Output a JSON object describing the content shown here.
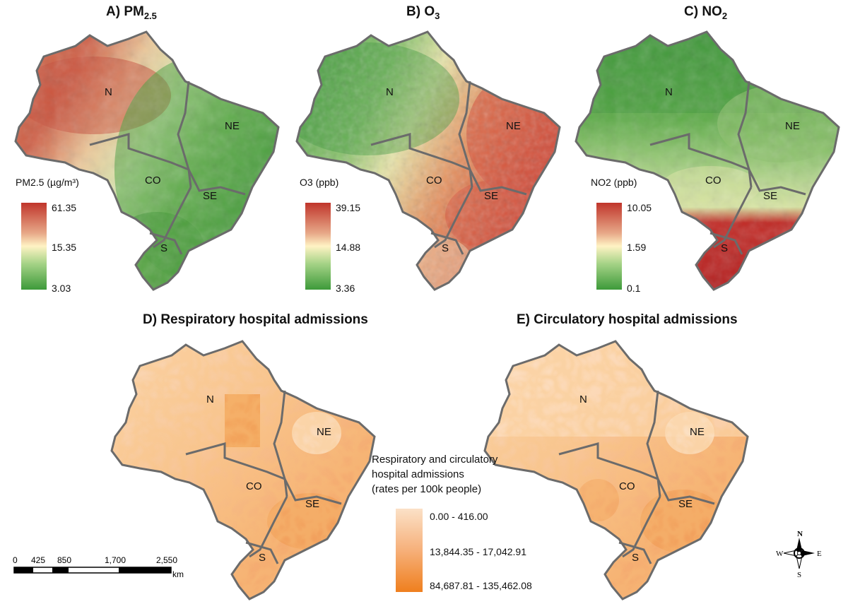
{
  "panels": [
    {
      "id": "A",
      "title_prefix": "A) PM",
      "title_sub": "2.5",
      "legend_title": "PM2.5 (µg/m³)",
      "legend": {
        "max": "61.35",
        "mid": "15.35",
        "min": "3.03"
      }
    },
    {
      "id": "B",
      "title_prefix": "B) O",
      "title_sub": "3",
      "legend_title": "O3 (ppb)",
      "legend": {
        "max": "39.15",
        "mid": "14.88",
        "min": "3.36"
      }
    },
    {
      "id": "C",
      "title_prefix": "C) NO",
      "title_sub": "2",
      "legend_title": "NO2 (ppb)",
      "legend": {
        "max": "10.05",
        "mid": "1.59",
        "min": "0.1"
      }
    },
    {
      "id": "D",
      "title": "D) Respiratory hospital admissions"
    },
    {
      "id": "E",
      "title": "E) Circulatory hospital admissions"
    }
  ],
  "regions": [
    "N",
    "NE",
    "CO",
    "SE",
    "S"
  ],
  "admissions_legend": {
    "title_lines": [
      "Respiratory and circulatory",
      "hospital admissions",
      "(rates per 100k people)"
    ],
    "classes": [
      "0.00 - 416.00",
      "13,844.35 - 17,042.91",
      "84,687.81 - 135,462.08"
    ]
  },
  "scale_bar": {
    "ticks": [
      "0",
      "425",
      "850",
      "1,700",
      "2,550"
    ],
    "unit": "km"
  },
  "compass": {
    "n": "N",
    "s": "S",
    "e": "E",
    "w": "W"
  },
  "colors": {
    "pm_high": "#c0352b",
    "pm_mid": "#fff3c4",
    "pm_low": "#3d9a3a",
    "adm_low": "#fbe1c7",
    "adm_mid": "#f6b07a",
    "adm_high": "#ef7f1e",
    "border": "#6b6b6b"
  }
}
